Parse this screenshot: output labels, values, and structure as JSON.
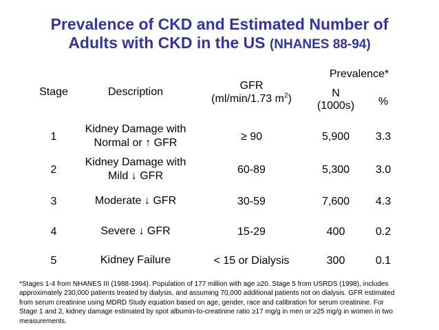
{
  "title": {
    "line1": "Prevalence of CKD and Estimated Number of",
    "line2": "Adults with CKD in the US",
    "line2_sub": "(NHANES 88-94)"
  },
  "colors": {
    "title_blue": "#3333a8",
    "text": "#000000",
    "background": "#ffffff"
  },
  "table": {
    "headers": {
      "stage": "Stage",
      "description": "Description",
      "gfr_line1": "GFR",
      "gfr_line2_prefix": "(ml/min/1.73 m",
      "gfr_line2_sup": "2",
      "gfr_line2_suffix": ")",
      "prevalence": "Prevalence*",
      "n_line1": "N",
      "n_line2": "(1000s)",
      "percent": "%"
    },
    "rows": [
      {
        "stage": "1",
        "desc_line1": "Kidney Damage with",
        "desc_line2": "Normal or ↑ GFR",
        "gfr": "≥ 90",
        "n": "5,900",
        "pct": "3.3"
      },
      {
        "stage": "2",
        "desc_line1": "Kidney Damage with",
        "desc_line2": "Mild ↓ GFR",
        "gfr": "60-89",
        "n": "5,300",
        "pct": "3.0"
      },
      {
        "stage": "3",
        "desc_line1": "Moderate ↓ GFR",
        "desc_line2": "",
        "gfr": "30-59",
        "n": "7,600",
        "pct": "4.3"
      },
      {
        "stage": "4",
        "desc_line1": "Severe ↓ GFR",
        "desc_line2": "",
        "gfr": "15-29",
        "n": "400",
        "pct": "0.2"
      },
      {
        "stage": "5",
        "desc_line1": "Kidney Failure",
        "desc_line2": "",
        "gfr": "< 15 or Dialysis",
        "n": "300",
        "pct": "0.1"
      }
    ]
  },
  "footnote": {
    "lines": [
      "*Stages 1-4 from NHANES III (1988-1994).  Population of 177 million with age ≥20.  Stage 5 from USRDS (1998), includes",
      "approximately 230,000 patients treated by dialysis, and assuming 70,000 additional patients not on dialysis.  GFR estimated",
      "from serum creatinine using MDRD Study equation based on age, gender, race and calibration for serum creatinine.  For",
      "Stage 1 and 2, kidney damage estimated by spot albumin-to-creatinine ratio ≥17 mg/g in men or ≥25 mg/g in women in two",
      "measurements."
    ]
  }
}
